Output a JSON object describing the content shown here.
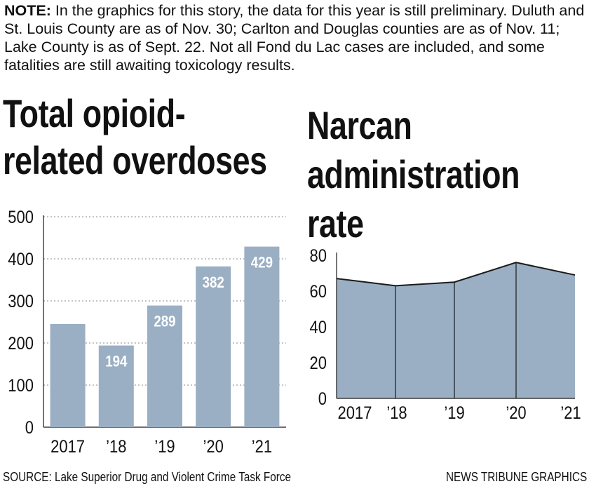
{
  "note": {
    "label": "NOTE:",
    "text": " In the graphics for this story, the data for this year is still preliminary. Duluth and St. Louis County are as of Nov. 30; Carlton and Douglas counties are as of Nov. 11; Lake County is as of Sept. 22. Not all Fond du Lac cases are included, and some fatalities are still awaiting toxicology results."
  },
  "footer": {
    "source": "SOURCE: Lake Superior Drug and Violent Crime Task Force",
    "credit": "NEWS TRIBUNE GRAPHICS"
  },
  "colors": {
    "fill": "#9aafc4",
    "line": "#1a1a1a",
    "grid": "#888888",
    "label": "#ffffff"
  },
  "chart_data": [
    {
      "type": "bar",
      "title": "Total opioid-related overdoses",
      "title_lines": [
        "Total opioid-",
        "related overdoses"
      ],
      "categories": [
        "2017",
        "’18",
        "’19",
        "’20",
        "’21"
      ],
      "values": [
        245,
        194,
        289,
        382,
        429
      ],
      "data_labels": [
        "",
        "194",
        "289",
        "382",
        "429"
      ],
      "ylim": [
        0,
        500
      ],
      "yticks": [
        0,
        100,
        200,
        300,
        400,
        500
      ],
      "grid": true
    },
    {
      "type": "area",
      "title": "Narcan administration rate",
      "title_lines": [
        "Narcan",
        "administration",
        "rate"
      ],
      "categories": [
        "2017",
        "’18",
        "’19",
        "’20",
        "’21"
      ],
      "values": [
        67,
        63,
        65,
        76,
        69
      ],
      "ylim": [
        0,
        80
      ],
      "yticks": [
        0,
        20,
        40,
        60,
        80
      ],
      "grid": false
    }
  ]
}
